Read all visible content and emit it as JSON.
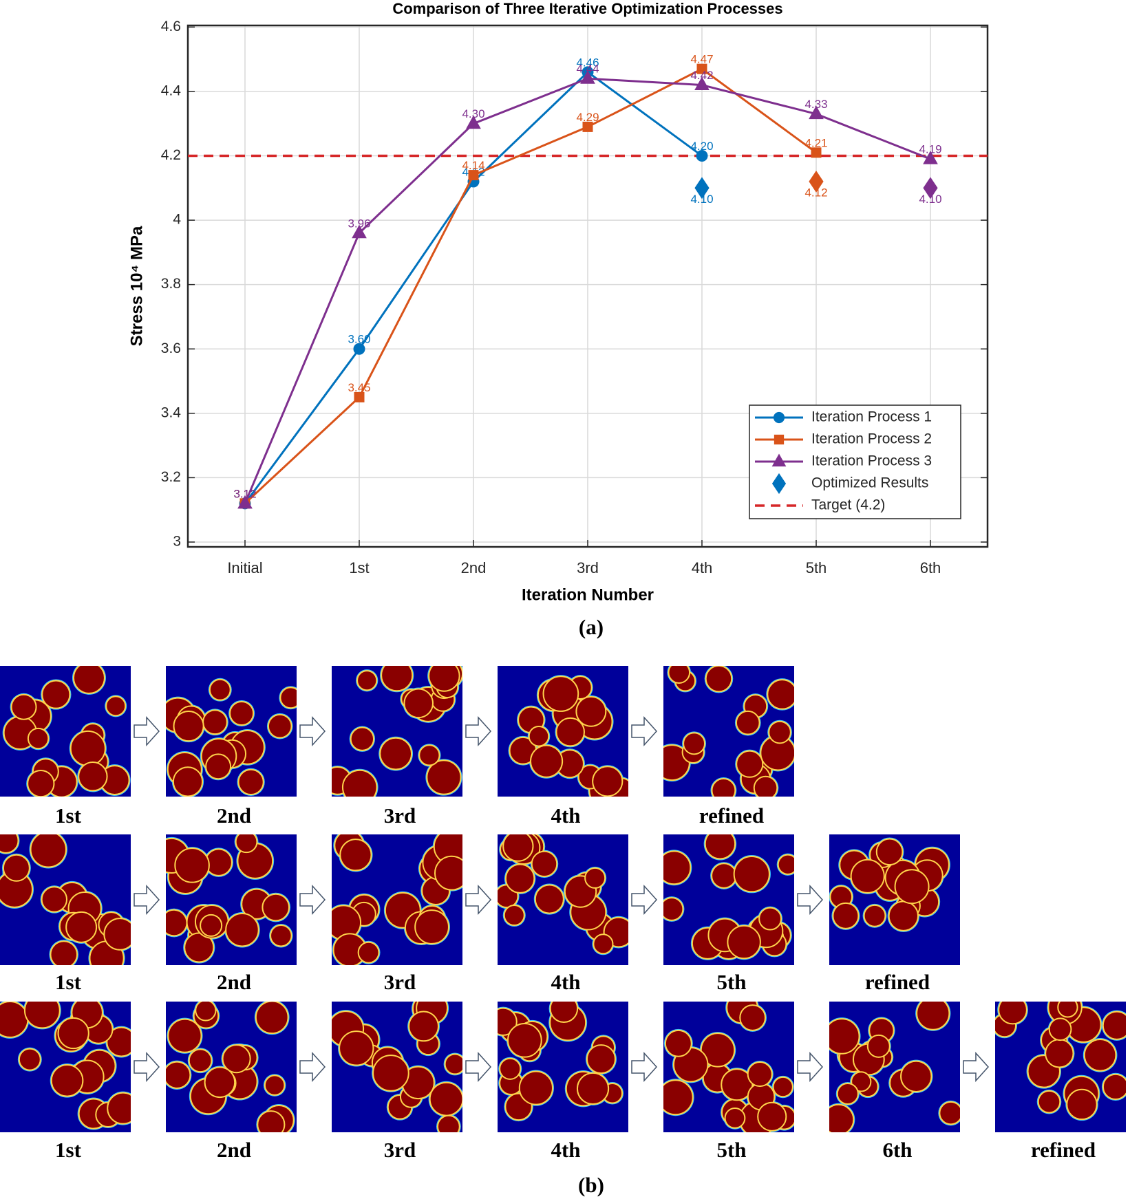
{
  "chart_data": {
    "type": "line",
    "title": "Comparison of Three Iterative Optimization Processes",
    "xlabel": "Iteration Number",
    "ylabel": "Stress 10⁴ MPa",
    "categories": [
      "Initial",
      "1st",
      "2nd",
      "3rd",
      "4th",
      "5th",
      "6th"
    ],
    "ylim": [
      2.985,
      4.605
    ],
    "yticks": [
      3,
      3.2,
      3.4,
      3.6,
      3.8,
      4,
      4.2,
      4.4,
      4.6
    ],
    "grid": true,
    "legend": "lower right",
    "series": [
      {
        "name": "Iteration Process 1",
        "color": "#0072bd",
        "marker": "circle",
        "line": true,
        "values": [
          3.12,
          3.6,
          4.12,
          4.46,
          4.2,
          null,
          null
        ],
        "value_labels": [
          "3.12",
          "3.60",
          "4.12",
          "4.46",
          "4.20",
          null,
          null
        ]
      },
      {
        "name": "Iteration Process 2",
        "color": "#d95319",
        "marker": "square",
        "line": true,
        "values": [
          3.12,
          3.45,
          4.14,
          4.29,
          4.47,
          4.21,
          null
        ],
        "value_labels": [
          "3.12",
          "3.45",
          "4.14",
          "4.29",
          "4.47",
          "4.21",
          null
        ]
      },
      {
        "name": "Iteration Process 3",
        "color": "#7e2f8e",
        "marker": "triangle",
        "line": true,
        "values": [
          3.12,
          3.96,
          4.3,
          4.44,
          4.42,
          4.33,
          4.19
        ],
        "value_labels": [
          "3.12",
          "3.96",
          "4.30",
          "4.44",
          "4.42",
          "4.33",
          "4.19"
        ]
      },
      {
        "name": "Optimized Results",
        "color": "#0072bd",
        "marker": "diamond",
        "line": false,
        "colors": [
          null,
          null,
          null,
          null,
          "#0072bd",
          "#d95319",
          "#7e2f8e"
        ],
        "values": [
          null,
          null,
          null,
          null,
          4.1,
          4.12,
          4.1
        ],
        "value_labels": [
          null,
          null,
          null,
          null,
          "4.10",
          "4.12",
          "4.10"
        ]
      }
    ],
    "target": {
      "name": "Target (4.2)",
      "value": 4.2,
      "color": "#d62728"
    }
  },
  "panel_a_label": "(a)",
  "panel_b": {
    "label": "(b)",
    "rows": [
      [
        "1st",
        "2nd",
        "3rd",
        "4th",
        "refined"
      ],
      [
        "1st",
        "2nd",
        "3rd",
        "4th",
        "5th",
        "refined"
      ],
      [
        "1st",
        "2nd",
        "3rd",
        "4th",
        "5th",
        "6th",
        "refined"
      ]
    ]
  }
}
